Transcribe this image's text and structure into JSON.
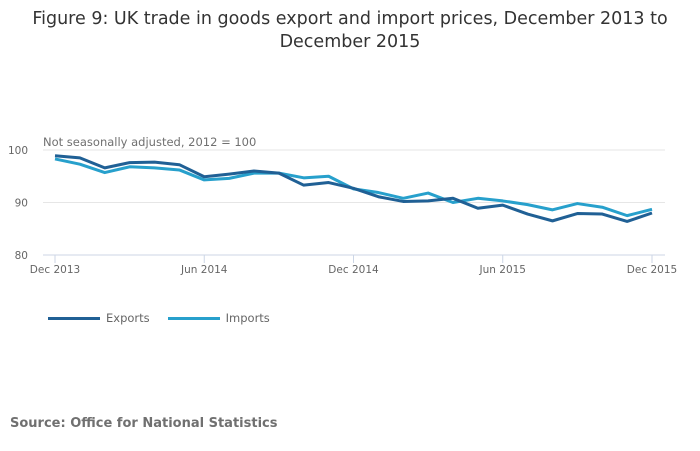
{
  "title": "Figure 9: UK trade in goods export and import prices, December 2013 to December 2015",
  "source": "Source: Office for National Statistics",
  "chart_data": {
    "type": "line",
    "title": "Figure 9: UK trade in goods export and import prices, December 2013 to December 2015",
    "subtitle": "Not seasonally adjusted, 2012 = 100",
    "xlabel": "",
    "ylabel": "",
    "ylim": [
      80,
      100
    ],
    "yticks": [
      "80",
      "90",
      "100"
    ],
    "xtick_labels": [
      "Dec 2013",
      "Jun 2014",
      "Dec 2014",
      "Jun 2015",
      "Dec 2015"
    ],
    "xtick_index": [
      0,
      6,
      12,
      18,
      24
    ],
    "grid": true,
    "legend_position": "bottom-left",
    "x": [
      "Dec 2013",
      "Jan 2014",
      "Feb 2014",
      "Mar 2014",
      "Apr 2014",
      "May 2014",
      "Jun 2014",
      "Jul 2014",
      "Aug 2014",
      "Sep 2014",
      "Oct 2014",
      "Nov 2014",
      "Dec 2014",
      "Jan 2015",
      "Feb 2015",
      "Mar 2015",
      "Apr 2015",
      "May 2015",
      "Jun 2015",
      "Jul 2015",
      "Aug 2015",
      "Sep 2015",
      "Oct 2015",
      "Nov 2015",
      "Dec 2015"
    ],
    "series": [
      {
        "name": "Exports",
        "color": "#206095",
        "values": [
          98.9,
          98.5,
          96.6,
          97.6,
          97.7,
          97.2,
          94.9,
          95.4,
          96.0,
          95.6,
          93.3,
          93.8,
          92.7,
          91.1,
          90.2,
          90.3,
          90.8,
          88.9,
          89.5,
          87.8,
          86.5,
          87.9,
          87.8,
          86.4,
          88.0
        ]
      },
      {
        "name": "Imports",
        "color": "#27a0cc",
        "values": [
          98.3,
          97.3,
          95.7,
          96.8,
          96.6,
          96.2,
          94.3,
          94.6,
          95.6,
          95.6,
          94.7,
          95.0,
          92.6,
          91.9,
          90.8,
          91.8,
          90.0,
          90.8,
          90.3,
          89.6,
          88.6,
          89.8,
          89.1,
          87.5,
          88.7
        ]
      }
    ]
  }
}
